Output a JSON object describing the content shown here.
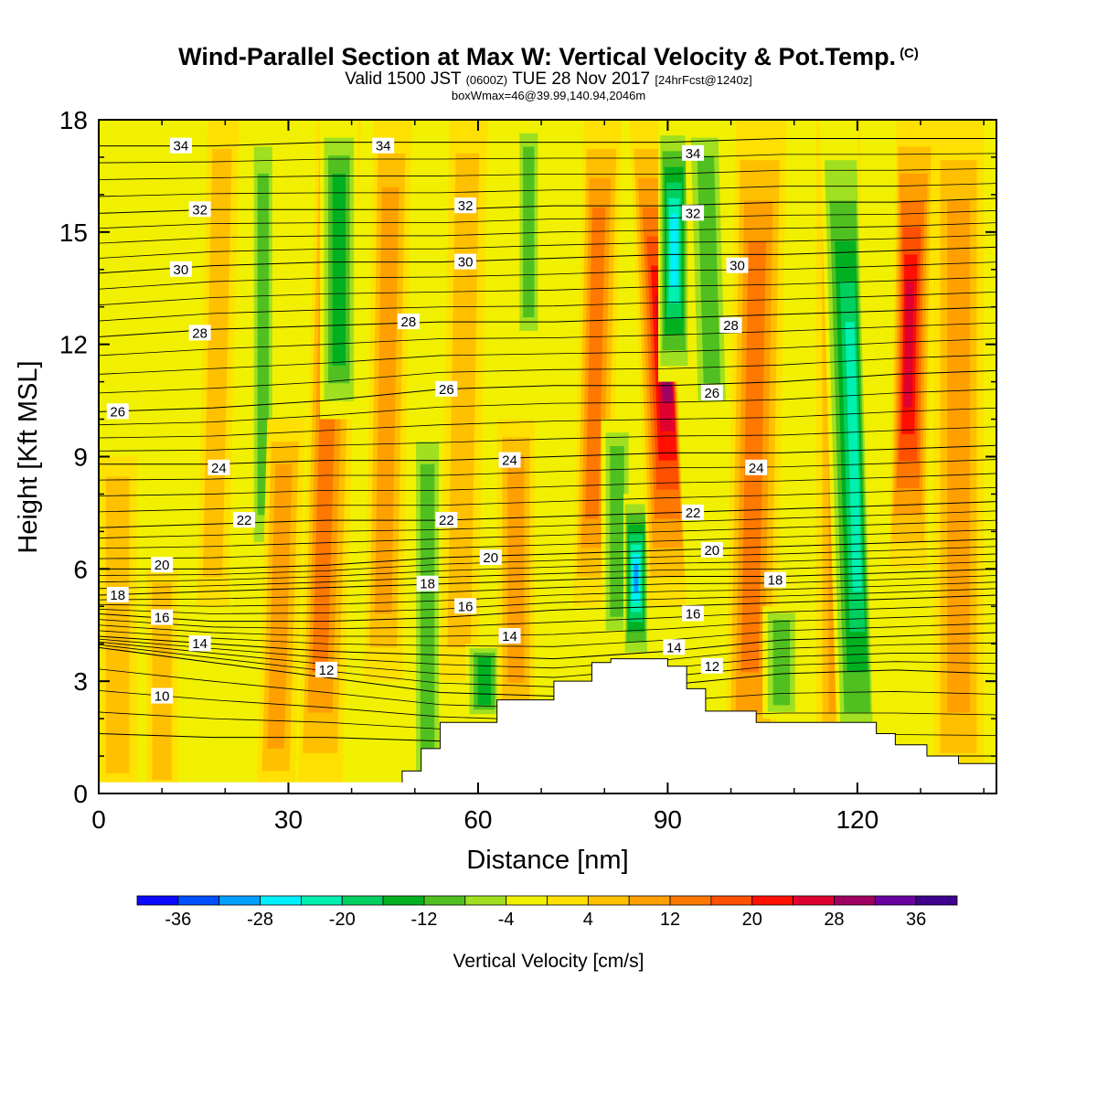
{
  "header": {
    "title": "Wind-Parallel Section at Max W: Vertical Velocity & Pot.Temp.",
    "copyright": "(C)",
    "valid_prefix": "Valid 1500 JST",
    "valid_z": "(0600Z)",
    "valid_date": "TUE 28 Nov 2017",
    "forecast": "[24hrFcst@1240z]",
    "box_info": "boxWmax=46@39.99,140.94,2046m"
  },
  "colorbar": {
    "label": "Vertical Velocity [cm/s]",
    "tick_labels": [
      "-36",
      "-28",
      "-20",
      "-12",
      "-4",
      "4",
      "12",
      "20",
      "28",
      "36"
    ],
    "levels": [
      -40,
      -36,
      -32,
      -28,
      -24,
      -20,
      -16,
      -12,
      -8,
      -4,
      0,
      4,
      8,
      12,
      16,
      20,
      24,
      28,
      32,
      36,
      40
    ],
    "colors": [
      "#0a0aff",
      "#0050ff",
      "#00a0ff",
      "#00f0ff",
      "#00f0b0",
      "#00d060",
      "#00b020",
      "#50c020",
      "#a0e020",
      "#f0f000",
      "#ffe000",
      "#ffc000",
      "#ffa000",
      "#ff7800",
      "#ff5000",
      "#ff1000",
      "#e00030",
      "#a00060",
      "#6a00a0",
      "#400090"
    ]
  },
  "chart_data": {
    "type": "heatmap",
    "title": "Wind-Parallel Section at Max W: Vertical Velocity & Pot.Temp.",
    "xlabel": "Distance [nm]",
    "ylabel": "Height [Kft MSL]",
    "xlim": [
      0,
      142
    ],
    "ylim": [
      0,
      18
    ],
    "x_ticks": [
      0,
      30,
      60,
      90,
      120
    ],
    "y_ticks": [
      0,
      3,
      6,
      9,
      12,
      15,
      18
    ],
    "colorbar_label": "Vertical Velocity [cm/s]",
    "background_velocity": -3,
    "velocity_bands": [
      {
        "x": 3,
        "y0": 0,
        "y1": 9,
        "slope": 0,
        "width": 3,
        "value": 7
      },
      {
        "x": 10,
        "y0": 0,
        "y1": 6,
        "slope": 0,
        "width": 2.5,
        "value": 6
      },
      {
        "x": 18,
        "y0": 5,
        "y1": 18,
        "slope": 0.4,
        "width": 2.5,
        "value": 6
      },
      {
        "x": 26,
        "y0": 6,
        "y1": 18,
        "slope": 0,
        "width": 2,
        "value": -9
      },
      {
        "x": 28,
        "y0": 0,
        "y1": 10,
        "slope": 0.5,
        "width": 3,
        "value": 10
      },
      {
        "x": 35,
        "y0": 0,
        "y1": 18,
        "slope": 0.5,
        "width": 3.5,
        "value": 14
      },
      {
        "x": 38,
        "y0": 10,
        "y1": 18,
        "slope": 0,
        "width": 3,
        "value": -13
      },
      {
        "x": 45,
        "y0": 3,
        "y1": 18,
        "slope": 0.3,
        "width": 3,
        "value": 12
      },
      {
        "x": 52,
        "y0": 0,
        "y1": 10,
        "slope": 0,
        "width": 2.5,
        "value": -9
      },
      {
        "x": 57,
        "y0": 3,
        "y1": 18,
        "slope": 0.3,
        "width": 3,
        "value": 8
      },
      {
        "x": 61,
        "y0": 2,
        "y1": 4,
        "slope": 0,
        "width": 3,
        "value": -14
      },
      {
        "x": 66,
        "y0": 2,
        "y1": 10,
        "slope": 0,
        "width": 3,
        "value": 10
      },
      {
        "x": 68,
        "y0": 12,
        "y1": 18,
        "slope": 0,
        "width": 2,
        "value": -12
      },
      {
        "x": 78,
        "y0": 5,
        "y1": 18,
        "slope": 0.4,
        "width": 3,
        "value": 14
      },
      {
        "x": 82,
        "y0": 4,
        "y1": 10,
        "slope": 0,
        "width": 2.5,
        "value": -10
      },
      {
        "x": 85,
        "y0": 3.5,
        "y1": 8,
        "slope": 0,
        "width": 2,
        "value": -30
      },
      {
        "x": 90,
        "y0": 5,
        "y1": 18,
        "slope": -0.7,
        "width": 3,
        "value": 34
      },
      {
        "x": 91,
        "y0": 11,
        "y1": 18,
        "slope": 0,
        "width": 2.5,
        "value": -26
      },
      {
        "x": 97,
        "y0": 10,
        "y1": 18,
        "slope": -0.5,
        "width": 3,
        "value": -10
      },
      {
        "x": 103,
        "y0": 0,
        "y1": 18,
        "slope": 0.3,
        "width": 4,
        "value": 14
      },
      {
        "x": 108,
        "y0": 2,
        "y1": 5,
        "slope": 0,
        "width": 3,
        "value": -12
      },
      {
        "x": 117,
        "y0": 0,
        "y1": 18,
        "slope": 0,
        "width": 3.5,
        "value": 9
      },
      {
        "x": 120,
        "y0": 0,
        "y1": 18,
        "slope": -0.5,
        "width": 3,
        "value": -22
      },
      {
        "x": 128,
        "y0": 6,
        "y1": 18,
        "slope": 0.3,
        "width": 3,
        "value": 26
      },
      {
        "x": 136,
        "y0": 0,
        "y1": 18,
        "slope": 0,
        "width": 4,
        "value": 12
      }
    ],
    "terrain": [
      [
        48,
        0.6
      ],
      [
        51,
        1.2
      ],
      [
        54,
        1.9
      ],
      [
        63,
        2.5
      ],
      [
        72,
        3.0
      ],
      [
        78,
        3.5
      ],
      [
        81,
        3.6
      ],
      [
        87,
        3.6
      ],
      [
        90,
        3.4
      ],
      [
        93,
        2.8
      ],
      [
        96,
        2.2
      ],
      [
        104,
        1.9
      ],
      [
        120,
        1.9
      ],
      [
        123,
        1.6
      ],
      [
        126,
        1.3
      ],
      [
        131,
        1.0
      ],
      [
        136,
        0.8
      ],
      [
        142,
        0.7
      ]
    ],
    "isentropes": [
      {
        "value": 10,
        "heights": [
          1.6,
          1.5,
          1.5,
          1.4,
          1.3,
          1.2,
          1.1,
          1.0,
          1.0
        ]
      },
      {
        "value": 12,
        "heights": [
          3.9,
          3.5,
          3.1,
          2.7,
          2.6,
          2.9,
          3.2,
          3.3,
          3.2
        ]
      },
      {
        "value": 14,
        "heights": [
          4.2,
          4.0,
          3.8,
          3.7,
          3.6,
          3.8,
          4.1,
          4.2,
          4.3
        ]
      },
      {
        "value": 16,
        "heights": [
          4.8,
          4.6,
          4.6,
          4.7,
          4.9,
          5.0,
          5.1,
          5.2,
          5.3
        ]
      },
      {
        "value": 18,
        "heights": [
          5.3,
          5.4,
          5.5,
          5.6,
          5.7,
          5.8,
          5.8,
          5.9,
          6.0
        ]
      },
      {
        "value": 20,
        "heights": [
          6.0,
          6.0,
          6.1,
          6.3,
          6.4,
          6.5,
          6.6,
          6.7,
          6.8
        ]
      },
      {
        "value": 22,
        "heights": [
          7.1,
          7.2,
          7.3,
          7.3,
          7.4,
          7.5,
          7.6,
          7.7,
          7.8
        ]
      },
      {
        "value": 24,
        "heights": [
          8.8,
          8.8,
          8.9,
          8.9,
          9.0,
          9.1,
          9.1,
          9.2,
          9.3
        ]
      },
      {
        "value": 26,
        "heights": [
          10.2,
          10.3,
          10.5,
          10.8,
          10.9,
          10.9,
          11.0,
          11.2,
          11.3
        ]
      },
      {
        "value": 28,
        "heights": [
          12.2,
          12.4,
          12.5,
          12.6,
          12.6,
          12.7,
          12.8,
          12.9,
          13.0
        ]
      },
      {
        "value": 30,
        "heights": [
          13.9,
          14.1,
          14.2,
          14.2,
          14.3,
          14.4,
          14.4,
          14.5,
          14.6
        ]
      },
      {
        "value": 32,
        "heights": [
          15.5,
          15.6,
          15.6,
          15.6,
          15.7,
          15.7,
          15.8,
          15.8,
          15.9
        ]
      },
      {
        "value": 34,
        "heights": [
          17.3,
          17.3,
          17.4,
          17.4,
          17.4,
          17.4,
          17.5,
          17.5,
          17.5
        ]
      }
    ],
    "isentrope_x": [
      0,
      18,
      36,
      54,
      72,
      90,
      108,
      126,
      142
    ],
    "contour_labels": [
      {
        "text": "34",
        "x": 13,
        "y": 17.3
      },
      {
        "text": "34",
        "x": 45,
        "y": 17.3
      },
      {
        "text": "34",
        "x": 94,
        "y": 17.1
      },
      {
        "text": "32",
        "x": 16,
        "y": 15.6
      },
      {
        "text": "32",
        "x": 58,
        "y": 15.7
      },
      {
        "text": "32",
        "x": 94,
        "y": 15.5
      },
      {
        "text": "30",
        "x": 13,
        "y": 14.0
      },
      {
        "text": "30",
        "x": 58,
        "y": 14.2
      },
      {
        "text": "30",
        "x": 101,
        "y": 14.1
      },
      {
        "text": "28",
        "x": 16,
        "y": 12.3
      },
      {
        "text": "28",
        "x": 49,
        "y": 12.6
      },
      {
        "text": "28",
        "x": 100,
        "y": 12.5
      },
      {
        "text": "26",
        "x": 3,
        "y": 10.2
      },
      {
        "text": "26",
        "x": 55,
        "y": 10.8
      },
      {
        "text": "26",
        "x": 97,
        "y": 10.7
      },
      {
        "text": "24",
        "x": 19,
        "y": 8.7
      },
      {
        "text": "24",
        "x": 65,
        "y": 8.9
      },
      {
        "text": "24",
        "x": 104,
        "y": 8.7
      },
      {
        "text": "22",
        "x": 23,
        "y": 7.3
      },
      {
        "text": "22",
        "x": 55,
        "y": 7.3
      },
      {
        "text": "22",
        "x": 94,
        "y": 7.5
      },
      {
        "text": "20",
        "x": 10,
        "y": 6.1
      },
      {
        "text": "20",
        "x": 62,
        "y": 6.3
      },
      {
        "text": "20",
        "x": 97,
        "y": 6.5
      },
      {
        "text": "18",
        "x": 3,
        "y": 5.3
      },
      {
        "text": "18",
        "x": 52,
        "y": 5.6
      },
      {
        "text": "18",
        "x": 107,
        "y": 5.7
      },
      {
        "text": "16",
        "x": 10,
        "y": 4.7
      },
      {
        "text": "16",
        "x": 58,
        "y": 5.0
      },
      {
        "text": "16",
        "x": 94,
        "y": 4.8
      },
      {
        "text": "14",
        "x": 16,
        "y": 4.0
      },
      {
        "text": "14",
        "x": 65,
        "y": 4.2
      },
      {
        "text": "14",
        "x": 91,
        "y": 3.9
      },
      {
        "text": "12",
        "x": 36,
        "y": 3.3
      },
      {
        "text": "12",
        "x": 97,
        "y": 3.4
      },
      {
        "text": "10",
        "x": 10,
        "y": 2.6
      }
    ]
  }
}
